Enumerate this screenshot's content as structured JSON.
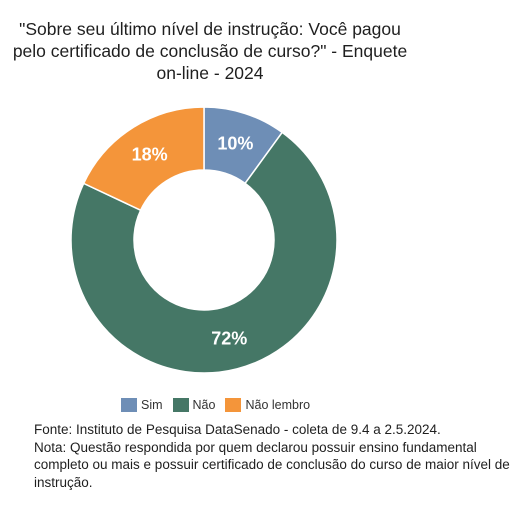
{
  "chart_data": {
    "type": "pie",
    "title": "\"Sobre seu último nível de instrução: Você pagou\npelo certificado de conclusão de curso?\" - Enquete\non-line - 2024",
    "categories": [
      "Sim",
      "Não",
      "Não lembro"
    ],
    "values": [
      10,
      72,
      18
    ],
    "labels": [
      "10%",
      "72%",
      "18%"
    ],
    "colors": [
      "#6e8eb6",
      "#457766",
      "#f4953a"
    ],
    "donut": true,
    "legend": "bottom"
  },
  "footer": {
    "source": "Fonte: Instituto de Pesquisa DataSenado - coleta de 9.4 a 2.5.2024.",
    "note": "Nota: Questão respondida por quem declarou possuir ensino fundamental completo ou mais e possuir certificado de conclusão do curso de maior nível de instrução."
  }
}
